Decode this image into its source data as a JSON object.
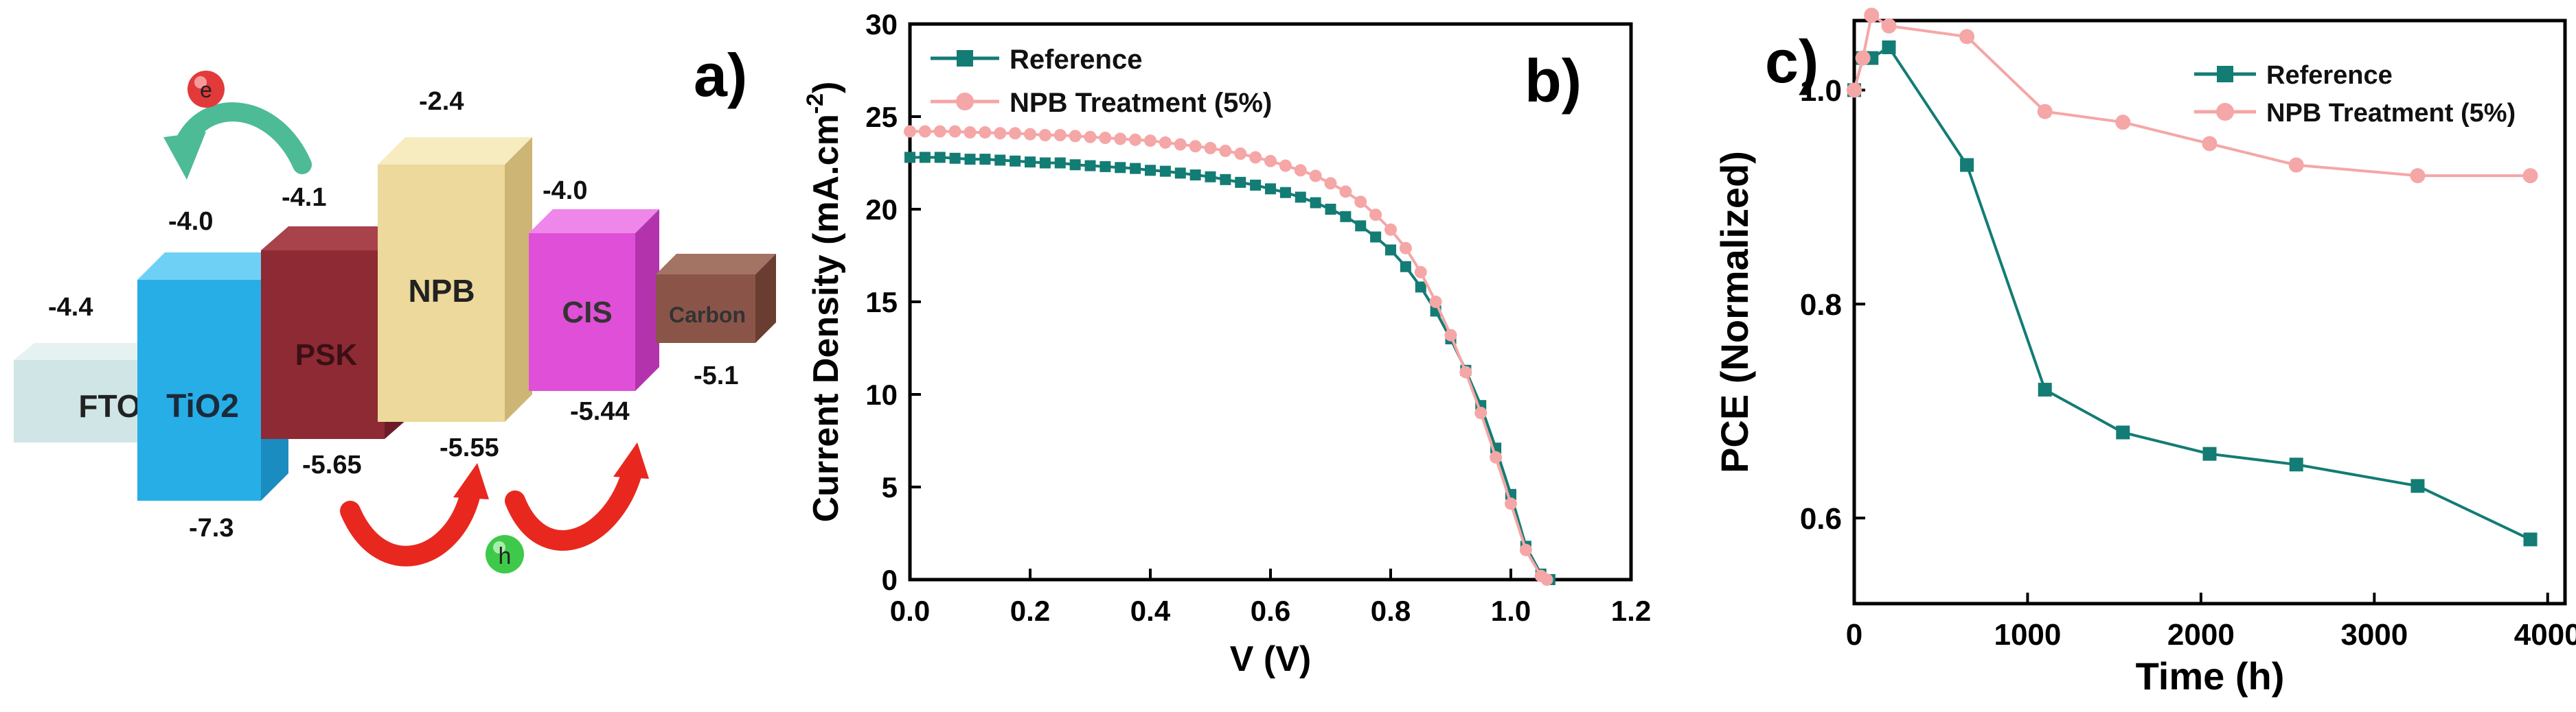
{
  "panel_a": {
    "label": "a)",
    "electron_label": "e",
    "hole_label": "h",
    "layers": [
      {
        "name": "FTO",
        "upper": "-4.4",
        "lower": ""
      },
      {
        "name": "TiO2",
        "upper": "-4.0",
        "lower": "-7.3"
      },
      {
        "name": "PSK",
        "upper": "-4.1",
        "lower": "-5.65"
      },
      {
        "name": "NPB",
        "upper": "-2.4",
        "lower": "-5.55"
      },
      {
        "name": "CIS",
        "upper": "-4.0",
        "lower": "-5.44"
      },
      {
        "name": "Carbon",
        "upper": "",
        "lower": "-5.1"
      }
    ],
    "colors": {
      "fto": "#cfe5e6",
      "tio2": "#27aee6",
      "psk": "#8e2a34",
      "npb": "#ecd99b",
      "cis": "#e04fd8",
      "carbon": "#8a5548",
      "electron": "#e23a3a",
      "hole": "#3fc94a",
      "electron_arrow": "#4dbb96",
      "hole_arrow": "#e8281e"
    }
  },
  "chart_data": [
    {
      "type": "line",
      "panel_label": "b)",
      "title": "",
      "xlabel": "V (V)",
      "ylabel": "Current Density (mA.cm",
      "ylabel_sup": "-2",
      "ylabel_tail": ")",
      "xlim": [
        0.0,
        1.2
      ],
      "ylim": [
        0,
        30
      ],
      "xticks": [
        "0.0",
        "0.2",
        "0.4",
        "0.6",
        "0.8",
        "1.0",
        "1.2"
      ],
      "yticks": [
        "0",
        "5",
        "10",
        "15",
        "20",
        "25",
        "30"
      ],
      "legend_position": "top-left",
      "grid": false,
      "series": [
        {
          "name": "Reference",
          "color": "#137c74",
          "marker": "square",
          "x": [
            0.0,
            0.025,
            0.05,
            0.075,
            0.1,
            0.125,
            0.15,
            0.175,
            0.2,
            0.225,
            0.25,
            0.275,
            0.3,
            0.325,
            0.35,
            0.375,
            0.4,
            0.425,
            0.45,
            0.475,
            0.5,
            0.525,
            0.55,
            0.575,
            0.6,
            0.625,
            0.65,
            0.675,
            0.7,
            0.725,
            0.75,
            0.775,
            0.8,
            0.825,
            0.85,
            0.875,
            0.9,
            0.925,
            0.95,
            0.975,
            1.0,
            1.025,
            1.05,
            1.065
          ],
          "y": [
            22.8,
            22.8,
            22.8,
            22.75,
            22.7,
            22.7,
            22.65,
            22.6,
            22.55,
            22.5,
            22.5,
            22.4,
            22.35,
            22.3,
            22.25,
            22.2,
            22.1,
            22.05,
            21.95,
            21.85,
            21.75,
            21.6,
            21.45,
            21.3,
            21.1,
            20.9,
            20.65,
            20.35,
            20.0,
            19.6,
            19.1,
            18.5,
            17.8,
            16.9,
            15.8,
            14.5,
            13.0,
            11.3,
            9.4,
            7.1,
            4.6,
            1.8,
            0.3,
            0.0
          ]
        },
        {
          "name": "NPB Treatment (5%)",
          "color": "#f5a6a6",
          "marker": "circle",
          "x": [
            0.0,
            0.025,
            0.05,
            0.075,
            0.1,
            0.125,
            0.15,
            0.175,
            0.2,
            0.225,
            0.25,
            0.275,
            0.3,
            0.325,
            0.35,
            0.375,
            0.4,
            0.425,
            0.45,
            0.475,
            0.5,
            0.525,
            0.55,
            0.575,
            0.6,
            0.625,
            0.65,
            0.675,
            0.7,
            0.725,
            0.75,
            0.775,
            0.8,
            0.825,
            0.85,
            0.875,
            0.9,
            0.925,
            0.95,
            0.975,
            1.0,
            1.025,
            1.05,
            1.06
          ],
          "y": [
            24.2,
            24.2,
            24.2,
            24.2,
            24.15,
            24.15,
            24.1,
            24.1,
            24.05,
            24.0,
            24.0,
            23.95,
            23.9,
            23.85,
            23.8,
            23.75,
            23.7,
            23.6,
            23.5,
            23.4,
            23.3,
            23.15,
            23.0,
            22.8,
            22.6,
            22.35,
            22.1,
            21.8,
            21.4,
            20.95,
            20.4,
            19.7,
            18.9,
            17.9,
            16.6,
            15.0,
            13.2,
            11.2,
            9.0,
            6.6,
            4.1,
            1.6,
            0.2,
            0.0
          ]
        }
      ]
    },
    {
      "type": "line",
      "panel_label": "c)",
      "title": "",
      "xlabel": "Time (h)",
      "ylabel": "PCE (Normalized)",
      "xlim": [
        0,
        4100
      ],
      "ylim": [
        0.52,
        1.065
      ],
      "xticks": [
        "0",
        "1000",
        "2000",
        "3000",
        "4000"
      ],
      "xtick_values": [
        0,
        1000,
        2000,
        3000,
        4000
      ],
      "yticks": [
        "0.6",
        "0.8",
        "1.0"
      ],
      "ytick_values": [
        0.6,
        0.8,
        1.0
      ],
      "legend_position": "top-right",
      "grid": false,
      "series": [
        {
          "name": "Reference",
          "color": "#137c74",
          "marker": "square",
          "x": [
            0,
            50,
            100,
            200,
            650,
            1100,
            1550,
            2050,
            2550,
            3250,
            3900
          ],
          "y": [
            1.0,
            1.03,
            1.03,
            1.04,
            0.93,
            0.72,
            0.68,
            0.66,
            0.65,
            0.63,
            0.58
          ]
        },
        {
          "name": "NPB Treatment (5%)",
          "color": "#f5a6a6",
          "marker": "circle",
          "x": [
            0,
            50,
            100,
            200,
            650,
            1100,
            1550,
            2050,
            2550,
            3250,
            3900
          ],
          "y": [
            1.0,
            1.03,
            1.07,
            1.06,
            1.05,
            0.98,
            0.97,
            0.95,
            0.93,
            0.92,
            0.92
          ]
        }
      ]
    }
  ]
}
